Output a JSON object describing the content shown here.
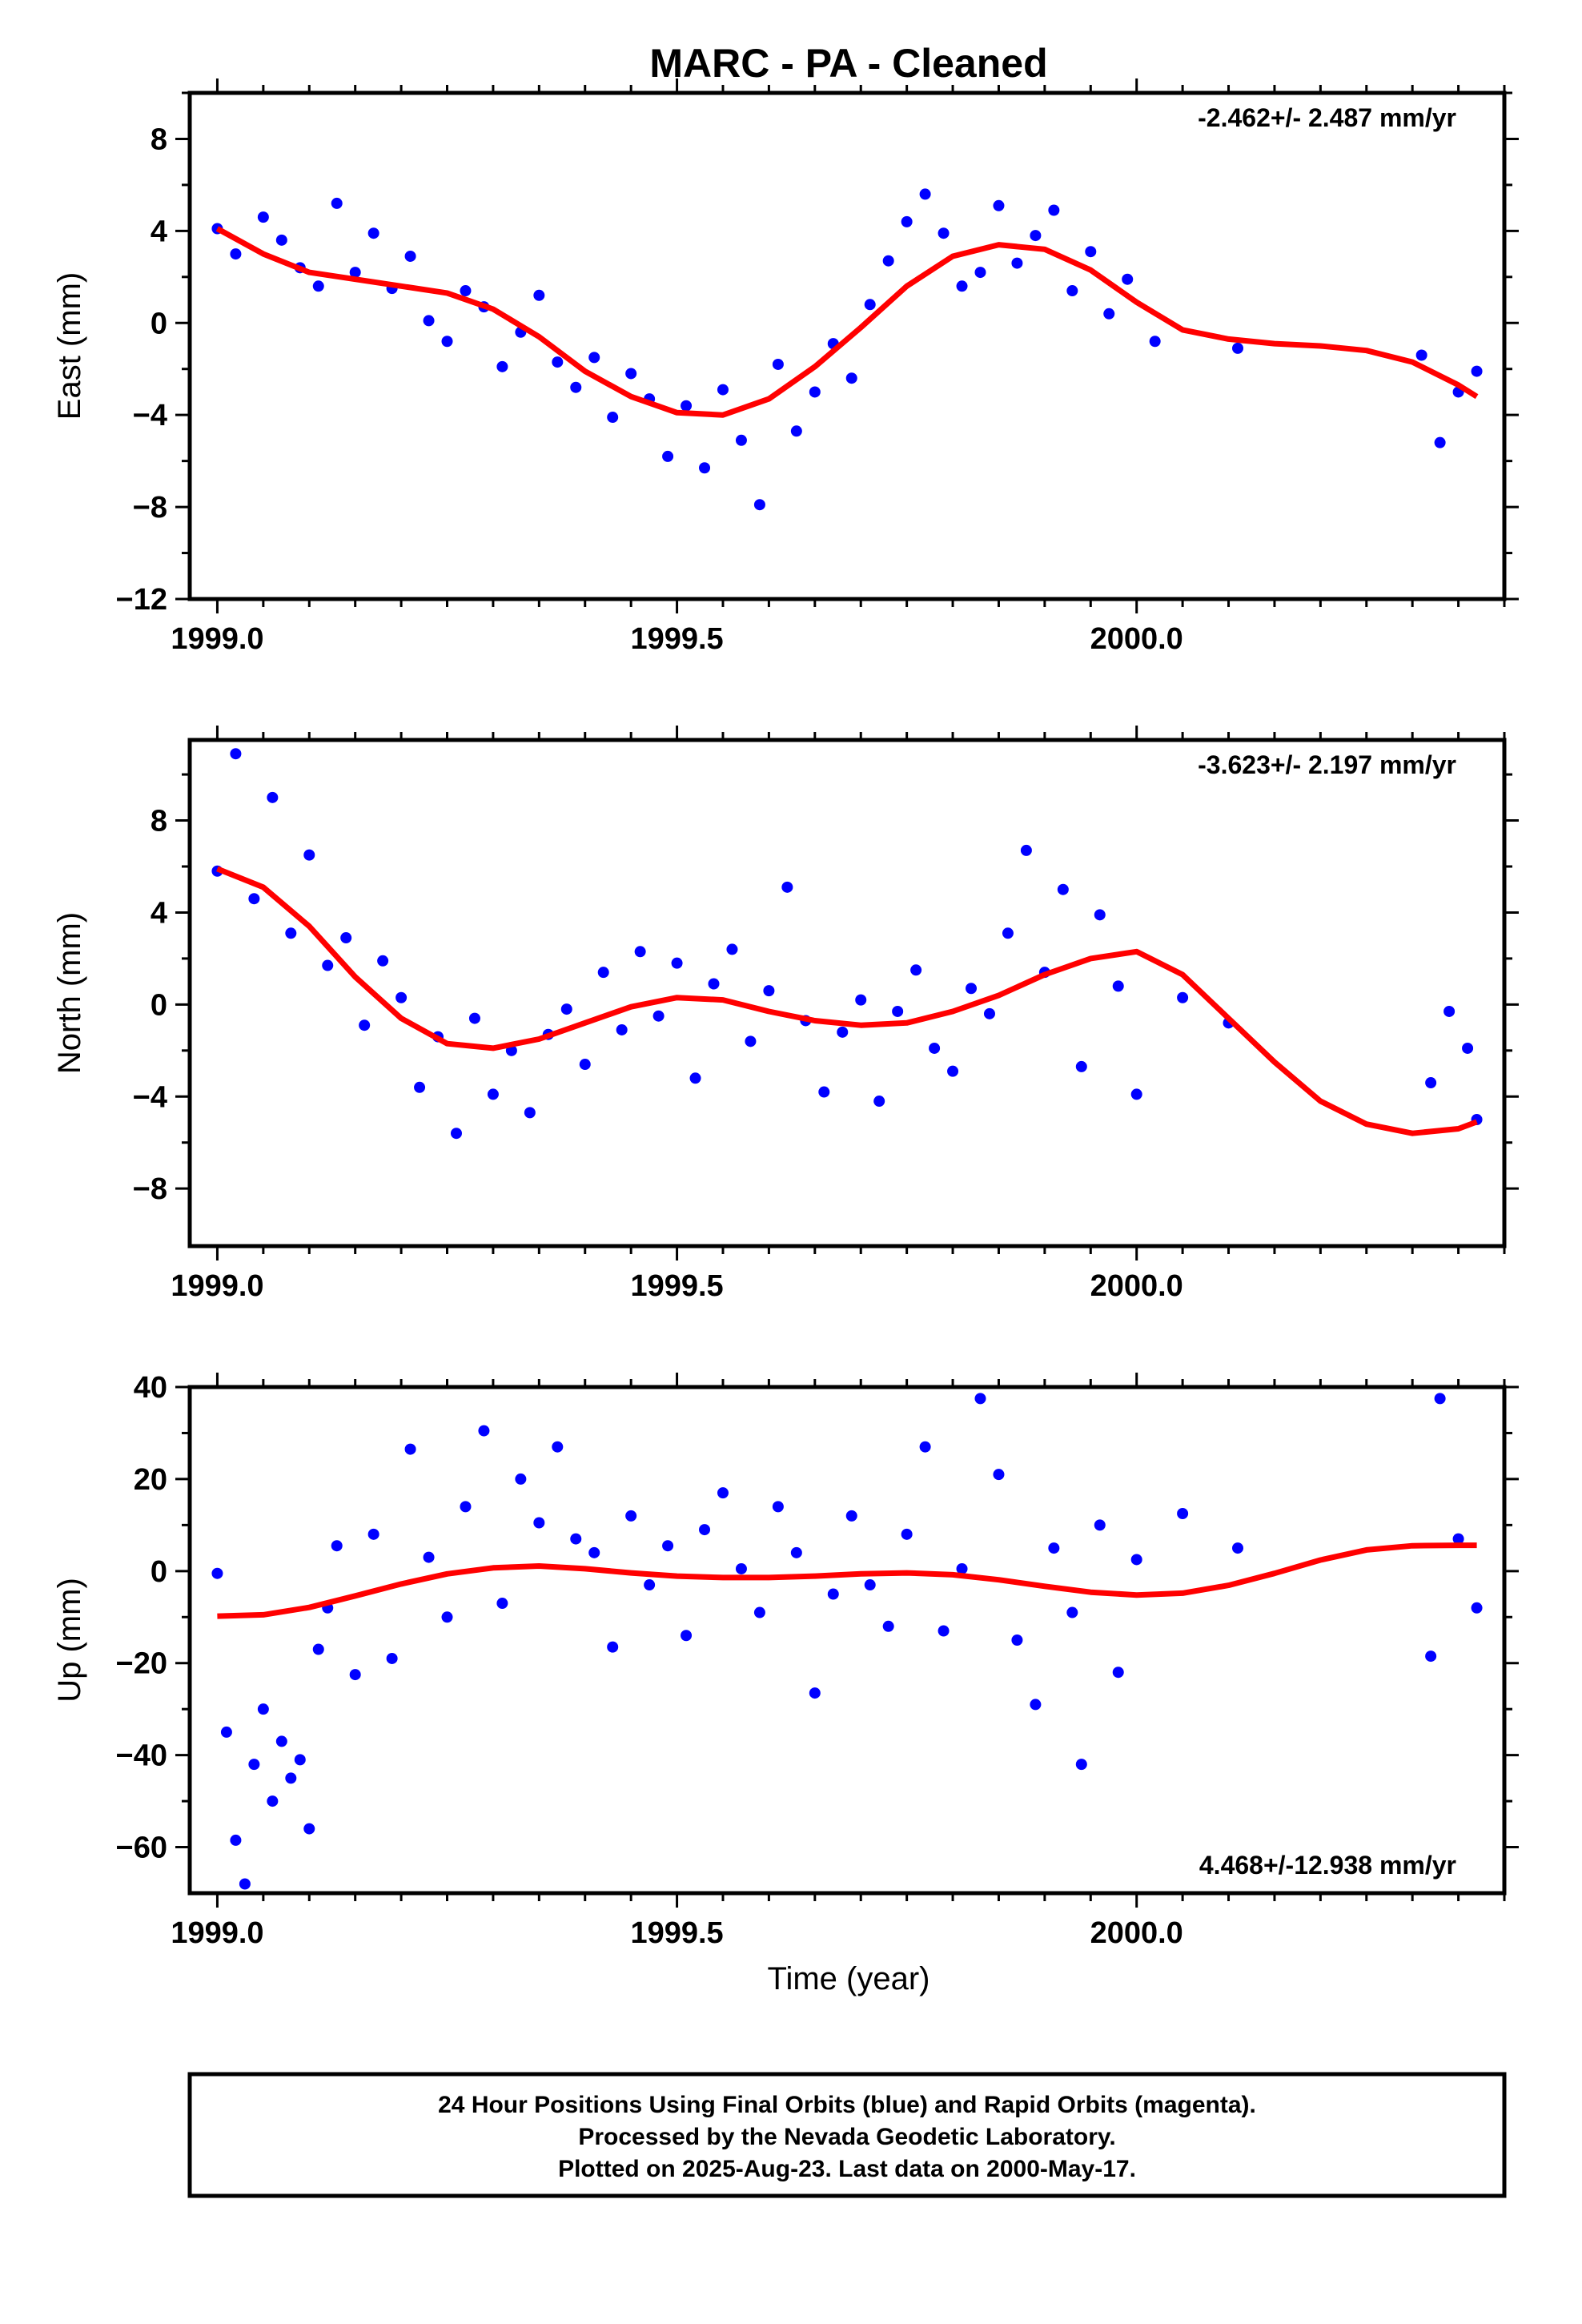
{
  "title": "MARC  - PA - Cleaned",
  "footer": {
    "line1": "24 Hour Positions Using Final Orbits (blue) and Rapid Orbits (magenta).",
    "line2": "Processed by the Nevada Geodetic Laboratory.",
    "line3": "Plotted on 2025-Aug-23. Last data on 2000-May-17."
  },
  "colors": {
    "points": "#0000ff",
    "fit": "#ff0000",
    "axes": "#000000"
  },
  "chart_data": [
    {
      "type": "scatter",
      "ylabel": "East (mm)",
      "xlabel": "",
      "rate_text": "-2.462+/- 2.487 mm/yr",
      "rate_position": "top-right",
      "xlim": [
        1998.97,
        2000.4
      ],
      "ylim": [
        -12,
        10
      ],
      "xticks": [
        1999.0,
        1999.5,
        2000.0
      ],
      "xtick_labels": [
        "1999.0",
        "1999.5",
        "2000.0"
      ],
      "yticks": [
        -12,
        -8,
        -4,
        0,
        4,
        8
      ],
      "ytick_labels": [
        "−12",
        "−8",
        "−4",
        "0",
        "4",
        "8"
      ],
      "grid": false,
      "fit_curve": {
        "x": [
          1999.0,
          1999.05,
          1999.1,
          1999.15,
          1999.2,
          1999.25,
          1999.3,
          1999.35,
          1999.4,
          1999.45,
          1999.5,
          1999.55,
          1999.6,
          1999.65,
          1999.7,
          1999.75,
          1999.8,
          1999.85,
          1999.9,
          1999.95,
          2000.0,
          2000.05,
          2000.1,
          2000.15,
          2000.2,
          2000.25,
          2000.3,
          2000.35,
          2000.37
        ],
        "y": [
          4.1,
          3.0,
          2.2,
          1.9,
          1.6,
          1.3,
          0.6,
          -0.6,
          -2.1,
          -3.2,
          -3.9,
          -4.0,
          -3.3,
          -1.9,
          -0.2,
          1.6,
          2.9,
          3.4,
          3.2,
          2.3,
          0.9,
          -0.3,
          -0.7,
          -0.9,
          -1.0,
          -1.2,
          -1.7,
          -2.7,
          -3.2
        ]
      },
      "points": [
        [
          1999.0,
          4.1
        ],
        [
          1999.02,
          3.0
        ],
        [
          1999.05,
          4.6
        ],
        [
          1999.07,
          3.6
        ],
        [
          1999.09,
          2.4
        ],
        [
          1999.11,
          1.6
        ],
        [
          1999.13,
          5.2
        ],
        [
          1999.15,
          2.2
        ],
        [
          1999.17,
          3.9
        ],
        [
          1999.19,
          1.5
        ],
        [
          1999.21,
          2.9
        ],
        [
          1999.23,
          0.1
        ],
        [
          1999.25,
          -0.8
        ],
        [
          1999.27,
          1.4
        ],
        [
          1999.29,
          0.7
        ],
        [
          1999.31,
          -1.9
        ],
        [
          1999.33,
          -0.4
        ],
        [
          1999.35,
          1.2
        ],
        [
          1999.37,
          -1.7
        ],
        [
          1999.39,
          -2.8
        ],
        [
          1999.41,
          -1.5
        ],
        [
          1999.43,
          -4.1
        ],
        [
          1999.45,
          -2.2
        ],
        [
          1999.47,
          -3.3
        ],
        [
          1999.49,
          -5.8
        ],
        [
          1999.51,
          -3.6
        ],
        [
          1999.53,
          -6.3
        ],
        [
          1999.55,
          -2.9
        ],
        [
          1999.57,
          -5.1
        ],
        [
          1999.59,
          -7.9
        ],
        [
          1999.61,
          -1.8
        ],
        [
          1999.63,
          -4.7
        ],
        [
          1999.65,
          -3.0
        ],
        [
          1999.67,
          -0.9
        ],
        [
          1999.69,
          -2.4
        ],
        [
          1999.71,
          0.8
        ],
        [
          1999.73,
          2.7
        ],
        [
          1999.75,
          4.4
        ],
        [
          1999.77,
          5.6
        ],
        [
          1999.79,
          3.9
        ],
        [
          1999.81,
          1.6
        ],
        [
          1999.83,
          2.2
        ],
        [
          1999.85,
          5.1
        ],
        [
          1999.87,
          2.6
        ],
        [
          1999.89,
          3.8
        ],
        [
          1999.91,
          4.9
        ],
        [
          1999.93,
          1.4
        ],
        [
          1999.95,
          3.1
        ],
        [
          1999.97,
          0.4
        ],
        [
          1999.99,
          1.9
        ],
        [
          2000.02,
          -0.8
        ],
        [
          2000.11,
          -1.1
        ],
        [
          2000.31,
          -1.4
        ],
        [
          2000.33,
          -5.2
        ],
        [
          2000.35,
          -3.0
        ],
        [
          2000.37,
          -2.1
        ]
      ]
    },
    {
      "type": "scatter",
      "ylabel": "North (mm)",
      "xlabel": "",
      "rate_text": "-3.623+/- 2.197 mm/yr",
      "rate_position": "top-right",
      "xlim": [
        1998.97,
        2000.4
      ],
      "ylim": [
        -10.5,
        11.5
      ],
      "xticks": [
        1999.0,
        1999.5,
        2000.0
      ],
      "xtick_labels": [
        "1999.0",
        "1999.5",
        "2000.0"
      ],
      "yticks": [
        -8,
        -4,
        0,
        4,
        8
      ],
      "ytick_labels": [
        "−8",
        "−4",
        "0",
        "4",
        "8"
      ],
      "grid": false,
      "fit_curve": {
        "x": [
          1999.0,
          1999.05,
          1999.1,
          1999.15,
          1999.2,
          1999.25,
          1999.3,
          1999.35,
          1999.4,
          1999.45,
          1999.5,
          1999.55,
          1999.6,
          1999.65,
          1999.7,
          1999.75,
          1999.8,
          1999.85,
          1999.9,
          1999.95,
          2000.0,
          2000.05,
          2000.1,
          2000.15,
          2000.2,
          2000.25,
          2000.3,
          2000.35,
          2000.37
        ],
        "y": [
          5.9,
          5.1,
          3.4,
          1.2,
          -0.6,
          -1.7,
          -1.9,
          -1.5,
          -0.8,
          -0.1,
          0.3,
          0.2,
          -0.3,
          -0.7,
          -0.9,
          -0.8,
          -0.3,
          0.4,
          1.3,
          2.0,
          2.3,
          1.3,
          -0.6,
          -2.5,
          -4.2,
          -5.2,
          -5.6,
          -5.4,
          -5.1
        ]
      },
      "points": [
        [
          1999.0,
          5.8
        ],
        [
          1999.02,
          10.9
        ],
        [
          1999.04,
          4.6
        ],
        [
          1999.06,
          9.0
        ],
        [
          1999.08,
          3.1
        ],
        [
          1999.1,
          6.5
        ],
        [
          1999.12,
          1.7
        ],
        [
          1999.14,
          2.9
        ],
        [
          1999.16,
          -0.9
        ],
        [
          1999.18,
          1.9
        ],
        [
          1999.2,
          0.3
        ],
        [
          1999.22,
          -3.6
        ],
        [
          1999.24,
          -1.4
        ],
        [
          1999.26,
          -5.6
        ],
        [
          1999.28,
          -0.6
        ],
        [
          1999.3,
          -3.9
        ],
        [
          1999.32,
          -2.0
        ],
        [
          1999.34,
          -4.7
        ],
        [
          1999.36,
          -1.3
        ],
        [
          1999.38,
          -0.2
        ],
        [
          1999.4,
          -2.6
        ],
        [
          1999.42,
          1.4
        ],
        [
          1999.44,
          -1.1
        ],
        [
          1999.46,
          2.3
        ],
        [
          1999.48,
          -0.5
        ],
        [
          1999.5,
          1.8
        ],
        [
          1999.52,
          -3.2
        ],
        [
          1999.54,
          0.9
        ],
        [
          1999.56,
          2.4
        ],
        [
          1999.58,
          -1.6
        ],
        [
          1999.6,
          0.6
        ],
        [
          1999.62,
          5.1
        ],
        [
          1999.64,
          -0.7
        ],
        [
          1999.66,
          -3.8
        ],
        [
          1999.68,
          -1.2
        ],
        [
          1999.7,
          0.2
        ],
        [
          1999.72,
          -4.2
        ],
        [
          1999.74,
          -0.3
        ],
        [
          1999.76,
          1.5
        ],
        [
          1999.78,
          -1.9
        ],
        [
          1999.8,
          -2.9
        ],
        [
          1999.82,
          0.7
        ],
        [
          1999.84,
          -0.4
        ],
        [
          1999.86,
          3.1
        ],
        [
          1999.88,
          6.7
        ],
        [
          1999.9,
          1.4
        ],
        [
          1999.92,
          5.0
        ],
        [
          1999.94,
          -2.7
        ],
        [
          1999.96,
          3.9
        ],
        [
          1999.98,
          0.8
        ],
        [
          2000.0,
          -3.9
        ],
        [
          2000.05,
          0.3
        ],
        [
          2000.1,
          -0.8
        ],
        [
          2000.32,
          -3.4
        ],
        [
          2000.34,
          -0.3
        ],
        [
          2000.36,
          -1.9
        ],
        [
          2000.37,
          -5.0
        ]
      ]
    },
    {
      "type": "scatter",
      "ylabel": "Up (mm)",
      "xlabel": "Time (year)",
      "rate_text": "4.468+/-12.938 mm/yr",
      "rate_position": "bottom-right",
      "xlim": [
        1998.97,
        2000.4
      ],
      "ylim": [
        -70,
        40
      ],
      "xticks": [
        1999.0,
        1999.5,
        2000.0
      ],
      "xtick_labels": [
        "1999.0",
        "1999.5",
        "2000.0"
      ],
      "yticks": [
        -60,
        -40,
        -20,
        0,
        20,
        40
      ],
      "ytick_labels": [
        "−60",
        "−40",
        "−20",
        "0",
        "20",
        "40"
      ],
      "grid": false,
      "fit_curve": {
        "x": [
          1999.0,
          1999.05,
          1999.1,
          1999.15,
          1999.2,
          1999.25,
          1999.3,
          1999.35,
          1999.4,
          1999.45,
          1999.5,
          1999.55,
          1999.6,
          1999.65,
          1999.7,
          1999.75,
          1999.8,
          1999.85,
          1999.9,
          1999.95,
          2000.0,
          2000.05,
          2000.1,
          2000.15,
          2000.2,
          2000.25,
          2000.3,
          2000.35,
          2000.37
        ],
        "y": [
          -9.8,
          -9.5,
          -7.9,
          -5.4,
          -2.8,
          -0.6,
          0.7,
          1.1,
          0.5,
          -0.4,
          -1.1,
          -1.4,
          -1.4,
          -1.1,
          -0.6,
          -0.4,
          -0.8,
          -1.9,
          -3.3,
          -4.6,
          -5.2,
          -4.8,
          -3.1,
          -0.5,
          2.4,
          4.6,
          5.5,
          5.6,
          5.6
        ]
      },
      "points": [
        [
          1999.0,
          -0.5
        ],
        [
          1999.01,
          -35.0
        ],
        [
          1999.02,
          -58.5
        ],
        [
          1999.03,
          -68.0
        ],
        [
          1999.04,
          -42.0
        ],
        [
          1999.05,
          -30.0
        ],
        [
          1999.06,
          -50.0
        ],
        [
          1999.07,
          -37.0
        ],
        [
          1999.08,
          -45.0
        ],
        [
          1999.09,
          -41.0
        ],
        [
          1999.1,
          -56.0
        ],
        [
          1999.11,
          -17.0
        ],
        [
          1999.12,
          -8.0
        ],
        [
          1999.13,
          5.5
        ],
        [
          1999.15,
          -22.5
        ],
        [
          1999.17,
          8.0
        ],
        [
          1999.19,
          -19.0
        ],
        [
          1999.21,
          26.5
        ],
        [
          1999.23,
          3.0
        ],
        [
          1999.25,
          -10.0
        ],
        [
          1999.27,
          14.0
        ],
        [
          1999.29,
          30.5
        ],
        [
          1999.31,
          -7.0
        ],
        [
          1999.33,
          20.0
        ],
        [
          1999.35,
          10.5
        ],
        [
          1999.37,
          27.0
        ],
        [
          1999.39,
          7.0
        ],
        [
          1999.41,
          4.0
        ],
        [
          1999.43,
          -16.5
        ],
        [
          1999.45,
          12.0
        ],
        [
          1999.47,
          -3.0
        ],
        [
          1999.49,
          5.5
        ],
        [
          1999.51,
          -14.0
        ],
        [
          1999.53,
          9.0
        ],
        [
          1999.55,
          17.0
        ],
        [
          1999.57,
          0.5
        ],
        [
          1999.59,
          -9.0
        ],
        [
          1999.61,
          14.0
        ],
        [
          1999.63,
          4.0
        ],
        [
          1999.65,
          -26.5
        ],
        [
          1999.67,
          -5.0
        ],
        [
          1999.69,
          12.0
        ],
        [
          1999.71,
          -3.0
        ],
        [
          1999.73,
          -12.0
        ],
        [
          1999.75,
          8.0
        ],
        [
          1999.77,
          27.0
        ],
        [
          1999.79,
          -13.0
        ],
        [
          1999.81,
          0.5
        ],
        [
          1999.83,
          37.5
        ],
        [
          1999.85,
          21.0
        ],
        [
          1999.87,
          -15.0
        ],
        [
          1999.89,
          -29.0
        ],
        [
          1999.91,
          5.0
        ],
        [
          1999.93,
          -9.0
        ],
        [
          1999.94,
          -42.0
        ],
        [
          1999.96,
          10.0
        ],
        [
          1999.98,
          -22.0
        ],
        [
          2000.0,
          2.5
        ],
        [
          2000.05,
          12.5
        ],
        [
          2000.11,
          5.0
        ],
        [
          2000.32,
          -18.5
        ],
        [
          2000.33,
          37.5
        ],
        [
          2000.35,
          7.0
        ],
        [
          2000.37,
          -8.0
        ]
      ]
    }
  ]
}
